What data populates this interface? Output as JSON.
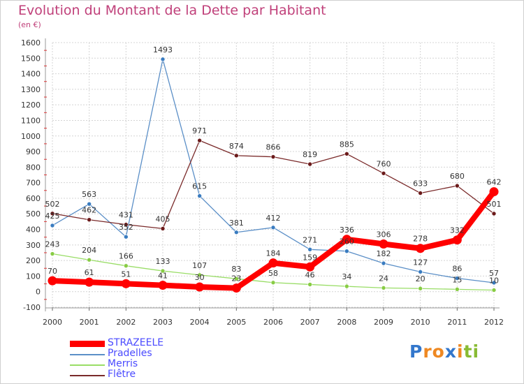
{
  "chart_data": {
    "type": "line",
    "title": "Evolution du Montant de la Dette par Habitant",
    "subtitle": "(en €)",
    "x": [
      "2000",
      "2001",
      "2002",
      "2003",
      "2004",
      "2005",
      "2006",
      "2007",
      "2008",
      "2009",
      "2010",
      "2011",
      "2012"
    ],
    "yticks": [
      "-100",
      "0",
      "100",
      "200",
      "300",
      "400",
      "500",
      "600",
      "700",
      "800",
      "900",
      "1000",
      "1100",
      "1200",
      "1300",
      "1400",
      "1500",
      "1600"
    ],
    "ylim": [
      -100,
      1600
    ],
    "grid": true,
    "legend_position": "bottom-left",
    "series": [
      {
        "name": "STRAZEELE",
        "color": "#ff0000",
        "values": [
          70,
          61,
          51,
          41,
          30,
          23,
          184,
          159,
          336,
          306,
          278,
          332,
          642
        ],
        "labels": [
          "70",
          "61",
          "51",
          "41",
          "30",
          "23",
          "184",
          "159",
          "336",
          "306",
          "278",
          "332",
          "642"
        ]
      },
      {
        "name": "Pradelles",
        "color": "#5b8fc7",
        "values": [
          425,
          563,
          352,
          1493,
          615,
          381,
          412,
          271,
          260,
          182,
          127,
          86,
          57
        ],
        "labels": [
          "425",
          "563",
          "352",
          "1493",
          "615",
          "381",
          "412",
          "271",
          "260",
          "182",
          "127",
          "86",
          "57"
        ]
      },
      {
        "name": "Merris",
        "color": "#99dd66",
        "values": [
          243,
          204,
          166,
          133,
          107,
          83,
          58,
          46,
          34,
          24,
          20,
          15,
          10
        ],
        "labels": [
          "243",
          "204",
          "166",
          "133",
          "107",
          "83",
          "58",
          "46",
          "34",
          "24",
          "20",
          "15",
          "10"
        ]
      },
      {
        "name": "Flêtre",
        "color": "#7a2a2a",
        "values": [
          502,
          462,
          431,
          405,
          971,
          874,
          866,
          819,
          885,
          760,
          633,
          680,
          501
        ],
        "labels": [
          "502",
          "462",
          "431",
          "405",
          "971",
          "874",
          "866",
          "819",
          "885",
          "760",
          "633",
          "680",
          "501"
        ]
      }
    ]
  },
  "logo": {
    "letters": [
      "P",
      "r",
      "o",
      "x",
      "i",
      "t",
      "i"
    ],
    "colors": [
      "#3377cc",
      "#ee8822",
      "#ee8822",
      "#3377cc",
      "#ee8822",
      "#88bb33",
      "#88bb33"
    ]
  }
}
